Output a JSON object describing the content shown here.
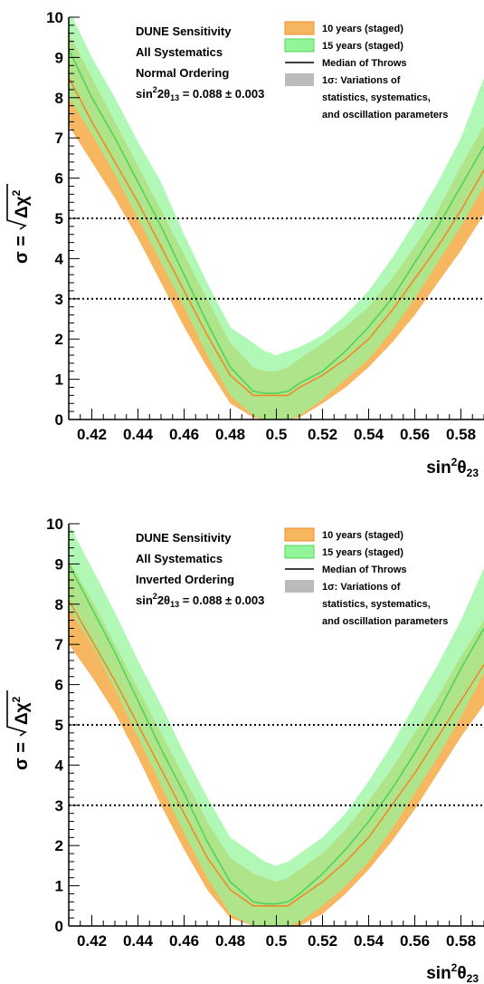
{
  "chart_data": [
    {
      "type": "area",
      "info_lines": [
        "DUNE Sensitivity",
        "All Systematics",
        "Normal Ordering"
      ],
      "theta13_text": {
        "pre": "sin",
        "sup1": "2",
        "mid": "2θ",
        "sub": "13",
        "post": " = 0.088 ± 0.003"
      },
      "ylabel": {
        "pre": "σ = ",
        "radicand": "Δχ",
        "sup": "2"
      },
      "xlabel": {
        "pre": "sin",
        "sup": "2",
        "mid": "θ",
        "sub": "23"
      },
      "xlim": [
        0.41,
        0.59
      ],
      "ylim": [
        0,
        10
      ],
      "x_ticks": [
        "0.42",
        "0.44",
        "0.46",
        "0.48",
        "0.5",
        "0.52",
        "0.54",
        "0.56",
        "0.58"
      ],
      "y_ticks": [
        "0",
        "1",
        "2",
        "3",
        "4",
        "5",
        "6",
        "7",
        "8",
        "9",
        "10"
      ],
      "reference_lines": [
        3,
        5
      ],
      "legend": [
        {
          "label": "10 years (staged)",
          "kind": "band",
          "color": "#f7b760"
        },
        {
          "label": "15 years (staged)",
          "kind": "band",
          "color": "#93f59a"
        },
        {
          "label": "Median of Throws",
          "kind": "line",
          "color": "#000000"
        },
        {
          "label": "1σ: Variations of",
          "kind": "gray",
          "color": "#bbbbbb"
        },
        {
          "label": "statistics, systematics,",
          "kind": "none"
        },
        {
          "label": "and oscillation parameters",
          "kind": "none"
        }
      ],
      "x": [
        0.41,
        0.42,
        0.43,
        0.44,
        0.45,
        0.46,
        0.47,
        0.48,
        0.49,
        0.495,
        0.5,
        0.505,
        0.51,
        0.52,
        0.53,
        0.54,
        0.55,
        0.56,
        0.57,
        0.58,
        0.59
      ],
      "series": [
        {
          "name": "10 years (staged)",
          "color": "#f7b760",
          "median_color": "#f08a2a",
          "median": [
            8.5,
            7.4,
            6.4,
            5.4,
            4.3,
            3.2,
            2.1,
            1.1,
            0.6,
            0.6,
            0.6,
            0.6,
            0.8,
            1.1,
            1.5,
            2.0,
            2.7,
            3.5,
            4.3,
            5.2,
            6.2
          ],
          "lower": [
            7.3,
            6.4,
            5.5,
            4.5,
            3.4,
            2.3,
            1.3,
            0.4,
            0.05,
            0.0,
            0.0,
            0.0,
            0.05,
            0.4,
            0.8,
            1.3,
            1.9,
            2.6,
            3.4,
            4.2,
            5.1
          ],
          "upper": [
            9.6,
            8.5,
            7.4,
            6.3,
            5.2,
            4.1,
            3.0,
            1.9,
            1.3,
            1.2,
            1.2,
            1.3,
            1.5,
            1.9,
            2.3,
            2.8,
            3.5,
            4.3,
            5.2,
            6.3,
            7.3
          ]
        },
        {
          "name": "15 years (staged)",
          "color": "#93f59a",
          "median_color": "#4fd45a",
          "median": [
            9.2,
            8.0,
            7.0,
            5.9,
            4.8,
            3.6,
            2.4,
            1.3,
            0.7,
            0.65,
            0.65,
            0.7,
            0.9,
            1.2,
            1.7,
            2.3,
            3.0,
            3.9,
            4.8,
            5.8,
            6.8
          ],
          "lower": [
            8.0,
            7.1,
            6.1,
            5.0,
            3.9,
            2.8,
            1.6,
            0.6,
            0.1,
            0.0,
            0.0,
            0.0,
            0.1,
            0.5,
            1.0,
            1.5,
            2.2,
            3.0,
            3.9,
            4.8,
            5.8
          ],
          "upper": [
            10.2,
            9.0,
            8.0,
            6.9,
            5.9,
            4.6,
            3.4,
            2.3,
            1.9,
            1.7,
            1.6,
            1.7,
            1.8,
            2.1,
            2.6,
            3.2,
            4.0,
            4.9,
            5.9,
            7.0,
            8.5
          ]
        }
      ]
    },
    {
      "type": "area",
      "info_lines": [
        "DUNE Sensitivity",
        "All Systematics",
        "Inverted Ordering"
      ],
      "theta13_text": {
        "pre": "sin",
        "sup1": "2",
        "mid": "2θ",
        "sub": "13",
        "post": " = 0.088 ± 0.003"
      },
      "ylabel": {
        "pre": "σ = ",
        "radicand": "Δχ",
        "sup": "2"
      },
      "xlabel": {
        "pre": "sin",
        "sup": "2",
        "mid": "θ",
        "sub": "23"
      },
      "xlim": [
        0.41,
        0.59
      ],
      "ylim": [
        0,
        10
      ],
      "x_ticks": [
        "0.42",
        "0.44",
        "0.46",
        "0.48",
        "0.5",
        "0.52",
        "0.54",
        "0.56",
        "0.58"
      ],
      "y_ticks": [
        "0",
        "1",
        "2",
        "3",
        "4",
        "5",
        "6",
        "7",
        "8",
        "9",
        "10"
      ],
      "reference_lines": [
        3,
        5
      ],
      "legend": [
        {
          "label": "10 years (staged)",
          "kind": "band",
          "color": "#f7b760"
        },
        {
          "label": "15 years (staged)",
          "kind": "band",
          "color": "#93f59a"
        },
        {
          "label": "Median of Throws",
          "kind": "line",
          "color": "#000000"
        },
        {
          "label": "1σ: Variations of",
          "kind": "gray",
          "color": "#bbbbbb"
        },
        {
          "label": "statistics, systematics,",
          "kind": "none"
        },
        {
          "label": "and oscillation parameters",
          "kind": "none"
        }
      ],
      "x": [
        0.41,
        0.42,
        0.43,
        0.44,
        0.45,
        0.46,
        0.47,
        0.48,
        0.49,
        0.495,
        0.5,
        0.505,
        0.51,
        0.52,
        0.53,
        0.54,
        0.55,
        0.56,
        0.57,
        0.58,
        0.59
      ],
      "series": [
        {
          "name": "10 years (staged)",
          "color": "#f7b760",
          "median_color": "#f08a2a",
          "median": [
            8.1,
            7.1,
            6.1,
            5.0,
            3.9,
            2.8,
            1.7,
            0.9,
            0.5,
            0.5,
            0.5,
            0.5,
            0.7,
            1.1,
            1.6,
            2.2,
            3.0,
            3.8,
            4.7,
            5.6,
            6.5
          ],
          "lower": [
            7.0,
            6.2,
            5.3,
            4.2,
            3.0,
            1.9,
            0.9,
            0.2,
            0.0,
            0.0,
            0.0,
            0.0,
            0.0,
            0.3,
            0.8,
            1.4,
            2.1,
            2.9,
            3.8,
            4.7,
            5.5
          ],
          "upper": [
            9.1,
            8.1,
            7.0,
            5.9,
            4.8,
            3.7,
            2.6,
            1.7,
            1.3,
            1.2,
            1.1,
            1.2,
            1.4,
            1.8,
            2.4,
            3.1,
            3.9,
            4.8,
            5.7,
            6.7,
            7.6
          ]
        },
        {
          "name": "15 years (staged)",
          "color": "#93f59a",
          "median_color": "#4fd45a",
          "median": [
            9.0,
            7.9,
            6.8,
            5.6,
            4.4,
            3.3,
            2.1,
            1.1,
            0.6,
            0.55,
            0.55,
            0.6,
            0.8,
            1.3,
            1.9,
            2.6,
            3.4,
            4.3,
            5.3,
            6.4,
            7.4
          ],
          "lower": [
            7.9,
            7.0,
            5.9,
            4.7,
            3.5,
            2.3,
            1.2,
            0.3,
            0.0,
            0.0,
            0.0,
            0.0,
            0.1,
            0.5,
            1.0,
            1.6,
            2.4,
            3.3,
            4.2,
            5.2,
            6.3
          ],
          "upper": [
            10.0,
            8.9,
            7.8,
            6.6,
            5.5,
            4.3,
            3.2,
            2.2,
            1.8,
            1.6,
            1.5,
            1.6,
            1.8,
            2.2,
            2.8,
            3.6,
            4.5,
            5.5,
            6.5,
            7.6,
            8.9
          ]
        }
      ]
    }
  ]
}
